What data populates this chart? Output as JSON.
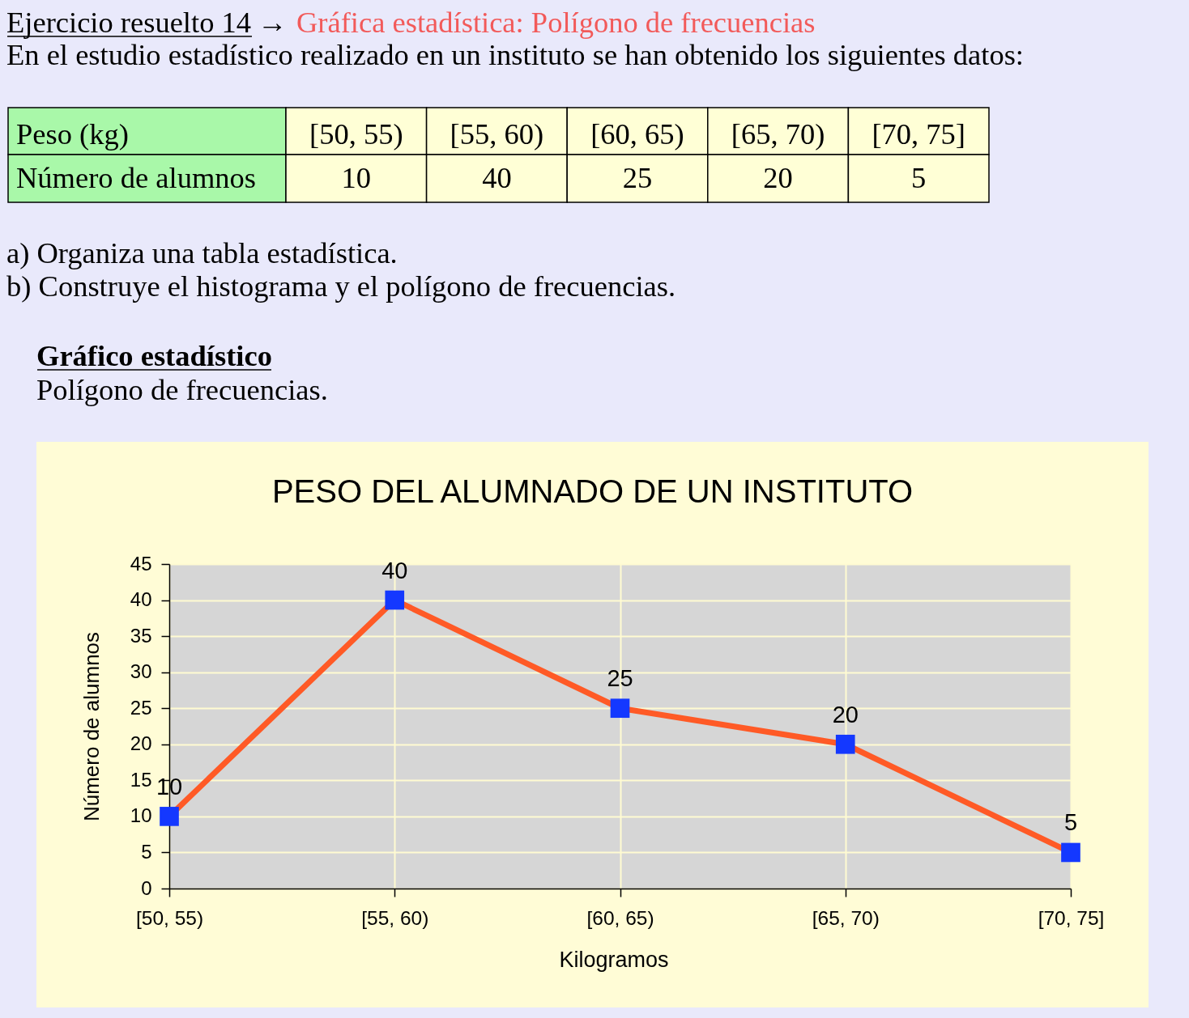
{
  "chart_data": [
    {
      "type": "other",
      "annotations": [
        "Ejercicio resuelto 14",
        "→",
        "Gráfica estadística: Polígono de frecuencias",
        "En el estudio estadístico realizado en un instituto se han obtenido los siguientes datos:",
        "a) Organiza una tabla estadística.",
        "b) Construye el histograma y el polígono de frecuencias.",
        "Gráfico estadístico",
        "Polígono de frecuencias."
      ],
      "xlabel": "Peso (kg)",
      "ylabel": "Número de alumnos",
      "categories": [
        "[50, 55)",
        "[55, 60)",
        "[60, 65)",
        "[65, 70)",
        "[70, 75]"
      ],
      "values": [
        10,
        40,
        25,
        20,
        5
      ],
      "data_labels": true
    },
    {
      "type": "line",
      "title": "PESO DEL ALUMNADO DE UN INSTITUTO",
      "xlabel": "Kilogramos",
      "ylabel": "Número de alumnos",
      "categories": [
        "[50, 55)",
        "[55, 60)",
        "[60, 65)",
        "[65, 70)",
        "[70, 75]"
      ],
      "values": [
        10,
        40,
        25,
        20,
        5
      ],
      "color": "#ff5a26",
      "colors": [
        "#1438ff",
        "#1438ff",
        "#1438ff",
        "#1438ff",
        "#1438ff"
      ],
      "marker": "square",
      "line_style": "solid",
      "data_labels": true,
      "grid": true,
      "ylim": [
        0,
        45
      ],
      "yticks": [
        0,
        5,
        10,
        15,
        20,
        25,
        30,
        35,
        40,
        45
      ]
    }
  ]
}
